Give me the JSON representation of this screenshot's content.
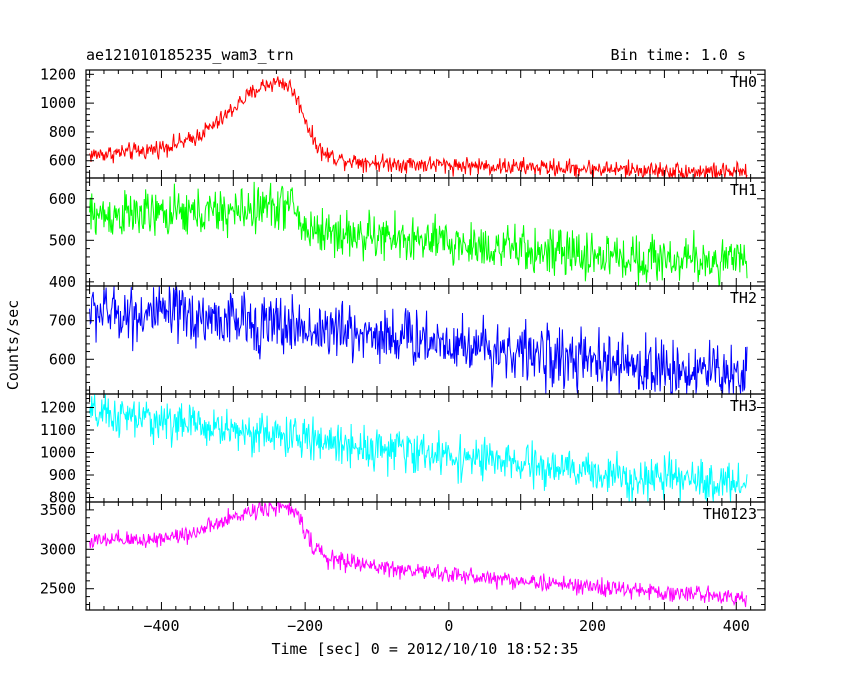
{
  "chart_data": {
    "type": "line",
    "title": "ae121010185235_wam3_trn",
    "subtitle": "Bin time: 1.0 s",
    "xlabel": "Time [sec] 0 = 2012/10/10 18:52:35",
    "ylabel": "Counts/sec",
    "xlim": [
      -505,
      440
    ],
    "x_ticks": [
      -400,
      -200,
      0,
      200,
      400
    ],
    "x_tick_labels": [
      "−400",
      "−200",
      "0",
      "200",
      "400"
    ],
    "x_range": [
      -500,
      415
    ],
    "bin_time_s": 1.0,
    "grid": false,
    "series": [
      {
        "name": "TH0",
        "color": "#ff0000",
        "ylim": [
          480,
          1230
        ],
        "y_ticks": [
          600,
          800,
          1000,
          1200
        ],
        "noise": 30,
        "profile": [
          [
            -500,
            640
          ],
          [
            -420,
            670
          ],
          [
            -360,
            740
          ],
          [
            -320,
            870
          ],
          [
            -290,
            1010
          ],
          [
            -260,
            1120
          ],
          [
            -235,
            1150
          ],
          [
            -220,
            1110
          ],
          [
            -205,
            960
          ],
          [
            -190,
            760
          ],
          [
            -175,
            650
          ],
          [
            -150,
            610
          ],
          [
            -100,
            585
          ],
          [
            0,
            570
          ],
          [
            100,
            555
          ],
          [
            200,
            545
          ],
          [
            300,
            530
          ],
          [
            415,
            520
          ]
        ]
      },
      {
        "name": "TH1",
        "color": "#00ff00",
        "ylim": [
          390,
          650
        ],
        "y_ticks": [
          400,
          500,
          600
        ],
        "noise": 28,
        "profile": [
          [
            -500,
            560
          ],
          [
            -400,
            562
          ],
          [
            -300,
            568
          ],
          [
            -250,
            582
          ],
          [
            -215,
            585
          ],
          [
            -205,
            530
          ],
          [
            -150,
            515
          ],
          [
            -50,
            500
          ],
          [
            50,
            485
          ],
          [
            150,
            468
          ],
          [
            250,
            458
          ],
          [
            350,
            452
          ],
          [
            415,
            448
          ]
        ]
      },
      {
        "name": "TH2",
        "color": "#0000ff",
        "ylim": [
          510,
          790
        ],
        "y_ticks": [
          600,
          700
        ],
        "noise": 38,
        "profile": [
          [
            -500,
            725
          ],
          [
            -400,
            715
          ],
          [
            -300,
            700
          ],
          [
            -200,
            680
          ],
          [
            -100,
            665
          ],
          [
            0,
            645
          ],
          [
            100,
            618
          ],
          [
            200,
            590
          ],
          [
            300,
            575
          ],
          [
            415,
            565
          ]
        ]
      },
      {
        "name": "TH3",
        "color": "#00ffff",
        "ylim": [
          780,
          1260
        ],
        "y_ticks": [
          800,
          900,
          1000,
          1100,
          1200
        ],
        "noise": 45,
        "profile": [
          [
            -500,
            1170
          ],
          [
            -400,
            1140
          ],
          [
            -300,
            1100
          ],
          [
            -200,
            1060
          ],
          [
            -100,
            1020
          ],
          [
            0,
            985
          ],
          [
            100,
            945
          ],
          [
            200,
            910
          ],
          [
            300,
            880
          ],
          [
            415,
            860
          ]
        ]
      },
      {
        "name": "TH0123",
        "color": "#ff00ff",
        "ylim": [
          2230,
          3600
        ],
        "y_ticks": [
          2500,
          3000,
          3500
        ],
        "noise": 55,
        "profile": [
          [
            -500,
            3100
          ],
          [
            -420,
            3120
          ],
          [
            -360,
            3200
          ],
          [
            -320,
            3320
          ],
          [
            -290,
            3440
          ],
          [
            -260,
            3530
          ],
          [
            -235,
            3540
          ],
          [
            -220,
            3500
          ],
          [
            -205,
            3360
          ],
          [
            -190,
            3050
          ],
          [
            -170,
            2880
          ],
          [
            -140,
            2840
          ],
          [
            -100,
            2780
          ],
          [
            0,
            2680
          ],
          [
            100,
            2600
          ],
          [
            200,
            2520
          ],
          [
            300,
            2450
          ],
          [
            415,
            2400
          ]
        ]
      }
    ]
  }
}
